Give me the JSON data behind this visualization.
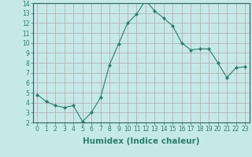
{
  "xlabel": "Humidex (Indice chaleur)",
  "ylabel": "",
  "x": [
    0,
    1,
    2,
    3,
    4,
    5,
    6,
    7,
    8,
    9,
    10,
    11,
    12,
    13,
    14,
    15,
    16,
    17,
    18,
    19,
    20,
    21,
    22,
    23
  ],
  "y": [
    4.8,
    4.1,
    3.7,
    3.5,
    3.7,
    2.1,
    3.0,
    4.5,
    7.8,
    9.9,
    12.0,
    12.9,
    14.3,
    13.2,
    12.5,
    11.7,
    10.0,
    9.3,
    9.4,
    9.4,
    8.0,
    6.5,
    7.5,
    7.6
  ],
  "line_color": "#2e7d6e",
  "marker": "D",
  "marker_size": 2.0,
  "bg_color": "#c5e8e8",
  "grid_color": "#aaaaaa",
  "grid_color_v": "#cc9999",
  "xlim": [
    -0.5,
    23.5
  ],
  "ylim": [
    2,
    14
  ],
  "yticks": [
    2,
    3,
    4,
    5,
    6,
    7,
    8,
    9,
    10,
    11,
    12,
    13,
    14
  ],
  "xticks": [
    0,
    1,
    2,
    3,
    4,
    5,
    6,
    7,
    8,
    9,
    10,
    11,
    12,
    13,
    14,
    15,
    16,
    17,
    18,
    19,
    20,
    21,
    22,
    23
  ],
  "tick_fontsize": 5.5,
  "xlabel_fontsize": 7.5,
  "xlabel_color": "#2e7d6e",
  "tick_color": "#2e7d6e"
}
